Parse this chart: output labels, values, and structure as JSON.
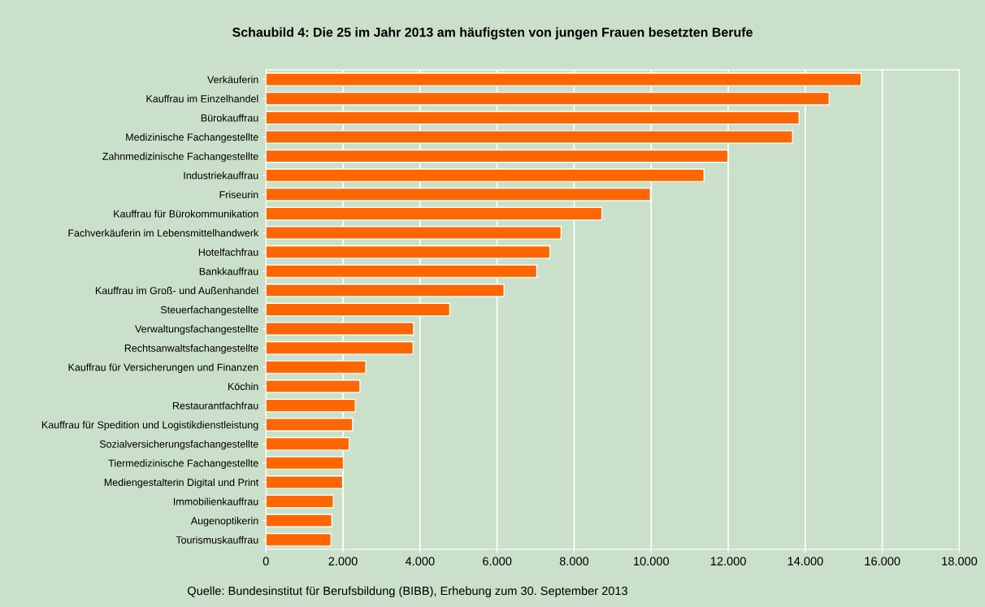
{
  "chart_data": {
    "type": "bar",
    "orientation": "horizontal",
    "title": "Schaubild 4: Die 25 im Jahr 2013 am häufigsten von jungen Frauen besetzten Berufe",
    "categories": [
      "Verkäuferin",
      "Kauffrau im Einzelhandel",
      "Bürokauffrau",
      "Medizinische Fachangestellte",
      "Zahnmedizinische Fachangestellte",
      "Industriekauffrau",
      "Friseurin",
      "Kauffrau für Bürokommunikation",
      "Fachverkäuferin im Lebensmittelhandwerk",
      "Hotelfachfrau",
      "Bankkauffrau",
      "Kauffrau im Groß- und Außenhandel",
      "Steuerfachangestellte",
      "Verwaltungsfachangestellte",
      "Rechtsanwaltsfachangestellte",
      "Kauffrau für Versicherungen und Finanzen",
      "Köchin",
      "Restaurantfachfrau",
      "Kauffrau für Spedition und Logistikdienstleistung",
      "Sozialversicherungsfachangestellte",
      "Tiermedizinische Fachangestellte",
      "Mediengestalterin Digital und Print",
      "Immobilienkauffrau",
      "Augenoptikerin",
      "Tourismuskauffrau"
    ],
    "values": [
      15450,
      14620,
      13840,
      13670,
      11990,
      11370,
      9980,
      8720,
      7660,
      7370,
      7030,
      6180,
      4770,
      3830,
      3820,
      2590,
      2440,
      2320,
      2250,
      2160,
      2010,
      1990,
      1750,
      1710,
      1690
    ],
    "color": "#ff6600",
    "xlim": [
      0,
      18000
    ],
    "xticks": [
      0,
      {
        "value": 2000,
        "label": "2.000"
      },
      {
        "value": 4000,
        "label": "4.000"
      },
      {
        "value": 6000,
        "label": "6.000"
      },
      {
        "value": 8000,
        "label": "8.000"
      },
      {
        "value": 10000,
        "label": "10.000"
      },
      {
        "value": 12000,
        "label": "12.000"
      },
      {
        "value": 14000,
        "label": "14.000"
      },
      {
        "value": 16000,
        "label": "16.000"
      },
      {
        "value": 18000,
        "label": "18.000"
      }
    ],
    "grid": "x",
    "annotations": [
      "Quelle: Bundesinstitut für Berufsbildung (BIBB), Erhebung zum 30. September 2013"
    ]
  }
}
